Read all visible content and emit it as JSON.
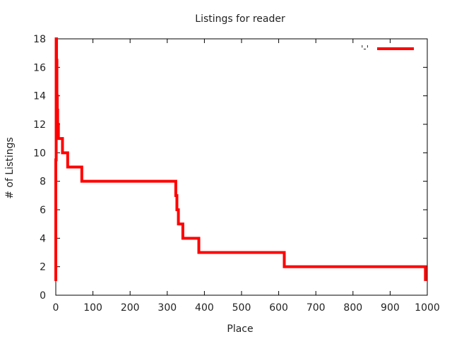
{
  "chart_data": {
    "type": "line",
    "title": "Listings for reader",
    "xlabel": "Place",
    "ylabel": "# of Listings",
    "xlim": [
      0,
      1000
    ],
    "ylim": [
      0,
      18
    ],
    "xticks": [
      0,
      100,
      200,
      300,
      400,
      500,
      600,
      700,
      800,
      900,
      1000
    ],
    "yticks": [
      0,
      2,
      4,
      6,
      8,
      10,
      12,
      14,
      16,
      18
    ],
    "grid": false,
    "legend": {
      "position": "top-right",
      "label": "'-'"
    },
    "series": [
      {
        "name": "'-'",
        "color": "#ff0000",
        "step": true,
        "points": [
          [
            0,
            1
          ],
          [
            0,
            9.5
          ],
          [
            1,
            18
          ],
          [
            2,
            16.5
          ],
          [
            3,
            14
          ],
          [
            4,
            13
          ],
          [
            5,
            12
          ],
          [
            7,
            11
          ],
          [
            18,
            10
          ],
          [
            32,
            9
          ],
          [
            70,
            8
          ],
          [
            323,
            7
          ],
          [
            326,
            6
          ],
          [
            330,
            5
          ],
          [
            342,
            4
          ],
          [
            385,
            3
          ],
          [
            615,
            2
          ],
          [
            995,
            1
          ]
        ]
      }
    ]
  }
}
